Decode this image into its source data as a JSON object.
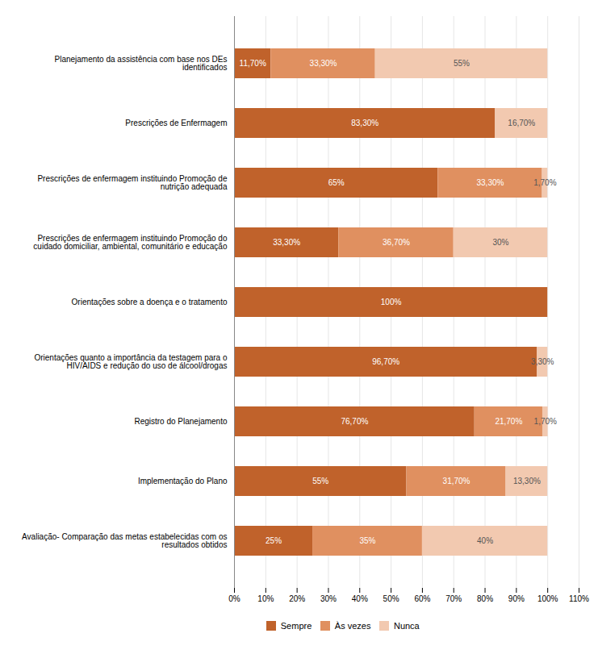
{
  "chart_data": {
    "type": "bar",
    "orientation": "horizontal",
    "stacked": true,
    "data_labels": true,
    "grid": true,
    "legend": "bottom",
    "categories": [
      "Planejamento da assistência com base nos DEs\nidentificados",
      "Prescrições de Enfermagem",
      "Prescrições de enfermagem instituindo Promoção de\nnutrição adequada",
      "Prescrições de enfermagem instituindo Promoção do\ncuidado domiciliar, ambiental, comunitário e educação",
      "Orientações sobre a doença e o tratamento",
      "Orientações quanto a importância da testagem para o\nHIV/AIDS e redução do uso de álcool/drogas",
      "Registro do Planejamento",
      "Implementação do Plano",
      "Avaliação- Comparação das metas estabelecidas com os\nresultados obtidos"
    ],
    "series": [
      {
        "name": "Sempre",
        "color": "#C0622B",
        "values": [
          11.7,
          83.3,
          65.0,
          33.3,
          100.0,
          96.7,
          76.7,
          55.0,
          25.0
        ],
        "value_labels": [
          "11,70%",
          "83,30%",
          "65%",
          "33,30%",
          "100%",
          "96,70%",
          "76,70%",
          "55%",
          "25%"
        ]
      },
      {
        "name": "Às vezes",
        "color": "#E09060",
        "values": [
          33.3,
          0.0,
          33.3,
          36.7,
          0.0,
          0.0,
          21.7,
          31.7,
          35.0
        ],
        "value_labels": [
          "33,30%",
          null,
          "33,30%",
          "36,70%",
          null,
          null,
          "21,70%",
          "31,70%",
          "35%"
        ]
      },
      {
        "name": "Nunca",
        "color": "#F2C9B0",
        "values": [
          55.0,
          16.7,
          1.7,
          30.0,
          0.0,
          3.3,
          1.7,
          13.3,
          40.0
        ],
        "value_labels": [
          "55%",
          "16,70%",
          "1,70%",
          "30%",
          null,
          "3,30%",
          "1,70%",
          "13,30%",
          "40%"
        ]
      }
    ],
    "xlim": [
      0,
      110
    ],
    "xticks": [
      {
        "value": 0,
        "label": "0%"
      },
      {
        "value": 10,
        "label": "10%"
      },
      {
        "value": 20,
        "label": "20%"
      },
      {
        "value": 30,
        "label": "30%"
      },
      {
        "value": 40,
        "label": "40%"
      },
      {
        "value": 50,
        "label": "50%"
      },
      {
        "value": 60,
        "label": "60%"
      },
      {
        "value": 70,
        "label": "70%"
      },
      {
        "value": 80,
        "label": "80%"
      },
      {
        "value": 90,
        "label": "90%"
      },
      {
        "value": 100,
        "label": "100%"
      },
      {
        "value": 110,
        "label": "110%"
      }
    ]
  }
}
